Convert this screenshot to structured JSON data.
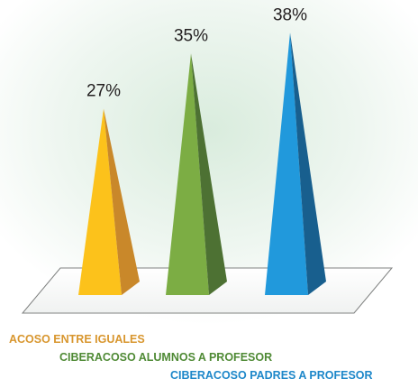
{
  "chart_data": {
    "type": "bar",
    "shape": "pyramid",
    "categories": [
      "ACOSO ENTRE IGUALES",
      "CIBERACOSO ALUMNOS A PROFESOR",
      "CIBERACOSO PADRES A PROFESOR"
    ],
    "values": [
      27,
      35,
      38
    ],
    "value_labels": [
      "27%",
      "35%",
      "38%"
    ],
    "unit": "%",
    "ylim": [
      0,
      40
    ],
    "title": "",
    "xlabel": "",
    "ylabel": "",
    "grid": false,
    "legend": "bottom",
    "colors": {
      "front": [
        "#fcc21b",
        "#7cad44",
        "#2199dc"
      ],
      "side": [
        "#c9882a",
        "#4d7133",
        "#185f8e"
      ],
      "legend_text": [
        "#d8962e",
        "#4f8a35",
        "#1d87c9"
      ]
    }
  }
}
